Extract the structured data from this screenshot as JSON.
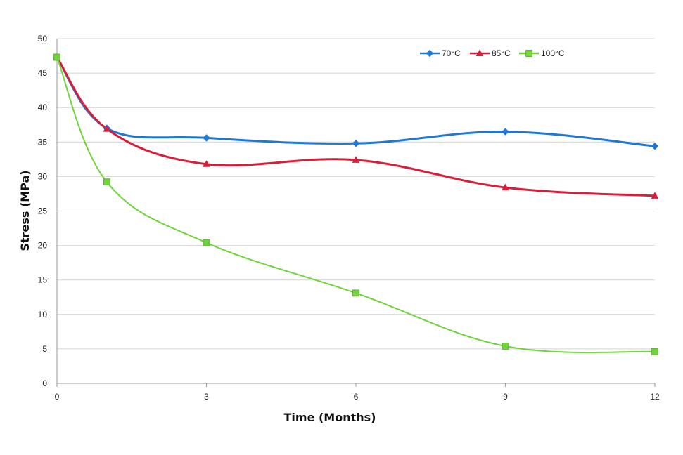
{
  "chart_data": {
    "type": "line",
    "title": "",
    "xlabel": "Time (Months)",
    "ylabel": "Stress (MPa)",
    "xlim": [
      0,
      12
    ],
    "ylim": [
      0,
      50
    ],
    "xticks": [
      0,
      3,
      6,
      9,
      12
    ],
    "yticks": [
      0,
      5,
      10,
      15,
      20,
      25,
      30,
      35,
      40,
      45,
      50
    ],
    "grid": "horizontal",
    "legend_position": "top-right",
    "series": [
      {
        "name": "70°C",
        "color": "#1f78d1",
        "marker": "diamond",
        "points": [
          {
            "x": 0,
            "y": 47.3
          },
          {
            "x": 1,
            "y": 37.0
          },
          {
            "x": 3,
            "y": 35.6
          },
          {
            "x": 6,
            "y": 34.8
          },
          {
            "x": 9,
            "y": 36.5
          },
          {
            "x": 12,
            "y": 34.4
          }
        ]
      },
      {
        "name": "85°C",
        "color": "#d91e3a",
        "marker": "triangle",
        "points": [
          {
            "x": 0,
            "y": 47.3
          },
          {
            "x": 1,
            "y": 36.9
          },
          {
            "x": 3,
            "y": 31.8
          },
          {
            "x": 6,
            "y": 32.4
          },
          {
            "x": 9,
            "y": 28.4
          },
          {
            "x": 12,
            "y": 27.2
          }
        ]
      },
      {
        "name": "100°C",
        "color": "#6fd43a",
        "marker": "square",
        "points": [
          {
            "x": 0,
            "y": 47.3
          },
          {
            "x": 1,
            "y": 29.2
          },
          {
            "x": 3,
            "y": 20.4
          },
          {
            "x": 6,
            "y": 13.1
          },
          {
            "x": 9,
            "y": 5.4
          },
          {
            "x": 12,
            "y": 4.6
          }
        ]
      }
    ]
  }
}
